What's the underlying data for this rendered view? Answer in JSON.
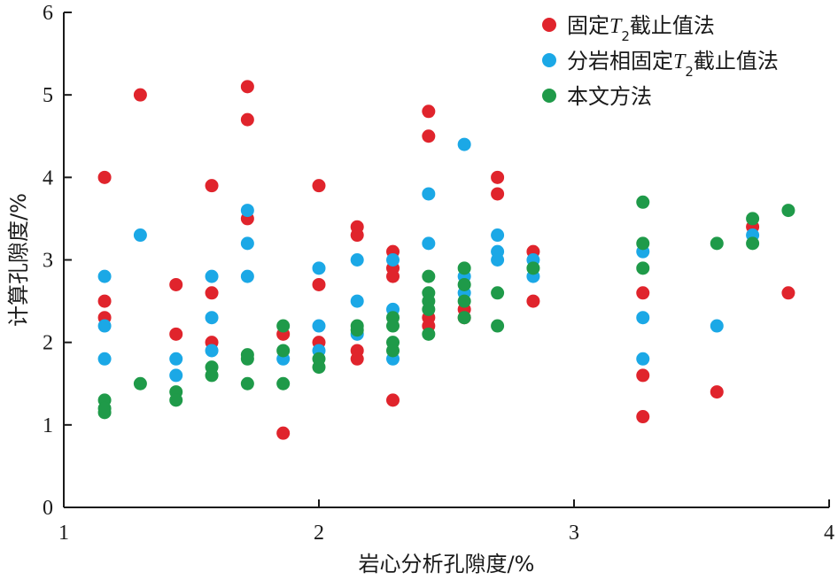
{
  "chart_data": {
    "type": "scatter",
    "xlabel": "岩心分析孔隙度/%",
    "ylabel": "计算孔隙度/%",
    "xlim": [
      1,
      4
    ],
    "ylim": [
      0,
      6
    ],
    "xticks": [
      1,
      2,
      3,
      4
    ],
    "yticks": [
      0,
      1,
      2,
      3,
      4,
      5,
      6
    ],
    "legend_position": "top-right",
    "series": [
      {
        "name": "固定T2截止值法",
        "name_parts": {
          "pre": "固定",
          "var": "T",
          "sub": "2",
          "post": "截止值法"
        },
        "color": "#e0242c",
        "points": [
          [
            1.16,
            4.0
          ],
          [
            1.16,
            2.5
          ],
          [
            1.16,
            2.3
          ],
          [
            1.3,
            5.0
          ],
          [
            1.44,
            2.7
          ],
          [
            1.44,
            2.1
          ],
          [
            1.58,
            3.9
          ],
          [
            1.58,
            2.6
          ],
          [
            1.58,
            2.0
          ],
          [
            1.72,
            5.1
          ],
          [
            1.72,
            4.7
          ],
          [
            1.72,
            3.5
          ],
          [
            1.86,
            2.1
          ],
          [
            1.86,
            0.9
          ],
          [
            2.0,
            3.9
          ],
          [
            2.0,
            2.7
          ],
          [
            2.0,
            2.0
          ],
          [
            2.15,
            3.4
          ],
          [
            2.15,
            3.3
          ],
          [
            2.15,
            1.9
          ],
          [
            2.15,
            1.8
          ],
          [
            2.29,
            3.1
          ],
          [
            2.29,
            2.9
          ],
          [
            2.29,
            2.8
          ],
          [
            2.29,
            1.3
          ],
          [
            2.43,
            4.8
          ],
          [
            2.43,
            4.5
          ],
          [
            2.43,
            2.3
          ],
          [
            2.43,
            2.2
          ],
          [
            2.57,
            2.4
          ],
          [
            2.57,
            2.3
          ],
          [
            2.7,
            4.0
          ],
          [
            2.7,
            3.8
          ],
          [
            2.84,
            3.1
          ],
          [
            2.84,
            2.5
          ],
          [
            3.27,
            2.6
          ],
          [
            3.27,
            1.6
          ],
          [
            3.27,
            1.1
          ],
          [
            3.56,
            1.4
          ],
          [
            3.7,
            3.4
          ],
          [
            3.84,
            2.6
          ]
        ]
      },
      {
        "name": "分岩相固定T2截止值法",
        "name_parts": {
          "pre": "分岩相固定",
          "var": "T",
          "sub": "2",
          "post": "截止值法"
        },
        "color": "#1ba8e6",
        "points": [
          [
            1.16,
            2.8
          ],
          [
            1.16,
            2.2
          ],
          [
            1.16,
            1.8
          ],
          [
            1.3,
            3.3
          ],
          [
            1.44,
            1.8
          ],
          [
            1.44,
            1.6
          ],
          [
            1.58,
            2.8
          ],
          [
            1.58,
            2.3
          ],
          [
            1.58,
            1.9
          ],
          [
            1.72,
            3.6
          ],
          [
            1.72,
            3.2
          ],
          [
            1.72,
            2.8
          ],
          [
            1.86,
            1.8
          ],
          [
            2.0,
            2.9
          ],
          [
            2.0,
            2.2
          ],
          [
            2.0,
            1.9
          ],
          [
            2.15,
            3.0
          ],
          [
            2.15,
            2.5
          ],
          [
            2.15,
            2.1
          ],
          [
            2.29,
            3.0
          ],
          [
            2.29,
            2.4
          ],
          [
            2.29,
            1.8
          ],
          [
            2.43,
            3.8
          ],
          [
            2.43,
            3.2
          ],
          [
            2.57,
            4.4
          ],
          [
            2.57,
            2.8
          ],
          [
            2.57,
            2.6
          ],
          [
            2.7,
            3.3
          ],
          [
            2.7,
            3.1
          ],
          [
            2.7,
            3.0
          ],
          [
            2.84,
            3.0
          ],
          [
            2.84,
            2.8
          ],
          [
            3.27,
            3.1
          ],
          [
            3.27,
            2.3
          ],
          [
            3.27,
            1.8
          ],
          [
            3.56,
            2.2
          ],
          [
            3.7,
            3.3
          ]
        ]
      },
      {
        "name": "本文方法",
        "color": "#1f9a49",
        "points": [
          [
            1.16,
            1.3
          ],
          [
            1.16,
            1.2
          ],
          [
            1.16,
            1.15
          ],
          [
            1.3,
            1.5
          ],
          [
            1.44,
            1.4
          ],
          [
            1.44,
            1.3
          ],
          [
            1.58,
            1.7
          ],
          [
            1.58,
            1.6
          ],
          [
            1.72,
            1.85
          ],
          [
            1.72,
            1.8
          ],
          [
            1.72,
            1.5
          ],
          [
            1.86,
            2.2
          ],
          [
            1.86,
            1.9
          ],
          [
            1.86,
            1.5
          ],
          [
            2.0,
            1.8
          ],
          [
            2.0,
            1.7
          ],
          [
            2.15,
            2.2
          ],
          [
            2.15,
            2.15
          ],
          [
            2.29,
            2.3
          ],
          [
            2.29,
            2.2
          ],
          [
            2.29,
            2.0
          ],
          [
            2.29,
            1.9
          ],
          [
            2.43,
            2.8
          ],
          [
            2.43,
            2.6
          ],
          [
            2.43,
            2.5
          ],
          [
            2.43,
            2.4
          ],
          [
            2.43,
            2.1
          ],
          [
            2.57,
            2.9
          ],
          [
            2.57,
            2.7
          ],
          [
            2.57,
            2.5
          ],
          [
            2.57,
            2.3
          ],
          [
            2.7,
            2.6
          ],
          [
            2.7,
            2.2
          ],
          [
            2.84,
            2.9
          ],
          [
            3.27,
            3.7
          ],
          [
            3.27,
            3.2
          ],
          [
            3.27,
            2.9
          ],
          [
            3.56,
            3.2
          ],
          [
            3.7,
            3.5
          ],
          [
            3.7,
            3.2
          ],
          [
            3.84,
            3.6
          ]
        ]
      }
    ]
  }
}
